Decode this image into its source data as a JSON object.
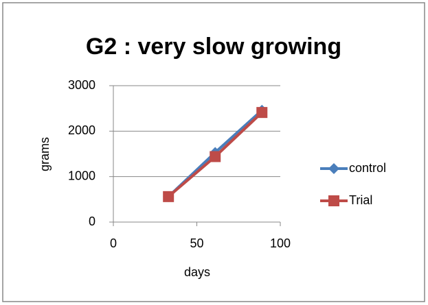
{
  "chart_data": {
    "type": "line",
    "title": "G2 : very slow growing",
    "x_label": "days",
    "y_label": "grams",
    "x": [
      33,
      61,
      89
    ],
    "series": [
      {
        "name": "control",
        "color": "#4a7ebb",
        "marker": "diamond",
        "values": [
          560,
          1530,
          2460
        ]
      },
      {
        "name": "Trial",
        "color": "#be4b48",
        "marker": "square",
        "values": [
          560,
          1440,
          2410
        ]
      }
    ],
    "xlim": [
      0,
      100
    ],
    "xticks": [
      0,
      50,
      100
    ],
    "ylim": [
      0,
      3000
    ],
    "yticks": [
      0,
      1000,
      2000,
      3000
    ],
    "grid": true,
    "legend": "right"
  }
}
